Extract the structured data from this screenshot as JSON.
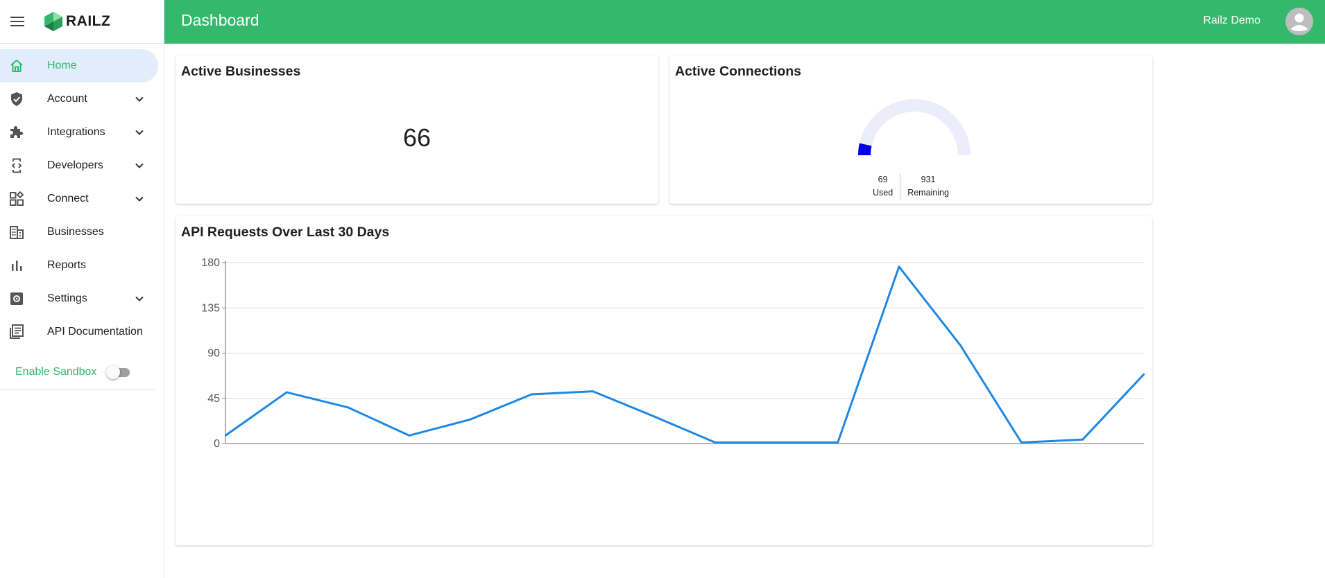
{
  "app": {
    "name": "RAILZ"
  },
  "header": {
    "title": "Dashboard",
    "user_name": "Railz Demo"
  },
  "sidebar": {
    "items": [
      {
        "label": "Home",
        "icon": "home-icon",
        "active": true,
        "expandable": false
      },
      {
        "label": "Account",
        "icon": "shield-check-icon",
        "active": false,
        "expandable": true
      },
      {
        "label": "Integrations",
        "icon": "puzzle-icon",
        "active": false,
        "expandable": true
      },
      {
        "label": "Developers",
        "icon": "developer-mode-icon",
        "active": false,
        "expandable": true
      },
      {
        "label": "Connect",
        "icon": "widgets-icon",
        "active": false,
        "expandable": true
      },
      {
        "label": "Businesses",
        "icon": "business-icon",
        "active": false,
        "expandable": false
      },
      {
        "label": "Reports",
        "icon": "bar-chart-icon",
        "active": false,
        "expandable": false
      },
      {
        "label": "Settings",
        "icon": "settings-icon",
        "active": false,
        "expandable": true
      },
      {
        "label": "API Documentation",
        "icon": "library-books-icon",
        "active": false,
        "expandable": false
      }
    ],
    "sandbox": {
      "label": "Enable Sandbox",
      "enabled": false
    }
  },
  "cards": {
    "active_businesses": {
      "title": "Active Businesses",
      "value": "66"
    },
    "active_connections": {
      "title": "Active Connections",
      "used": 69,
      "remaining": 931,
      "used_display": "69",
      "remaining_display": "931",
      "used_label": "Used",
      "remaining_label": "Remaining",
      "used_color": "#0000e8",
      "remaining_color": "#ececfa"
    },
    "api_requests": {
      "title": "API Requests Over Last 30 Days"
    }
  },
  "colors": {
    "brand": "#33b86c",
    "accent_text": "#2fb76a",
    "active_nav_bg": "#e2edfc",
    "line": "#1e88e5"
  },
  "chart_data": {
    "type": "line",
    "title": "API Requests Over Last 30 Days",
    "xlabel": "",
    "ylabel": "",
    "ylim": [
      0,
      180
    ],
    "yticks": [
      0,
      45,
      90,
      135,
      180
    ],
    "grid": true,
    "x": [
      0,
      1,
      2,
      3,
      4,
      5,
      6,
      7,
      8,
      9,
      10,
      11,
      12,
      13,
      14,
      15
    ],
    "series": [
      {
        "values": [
          8,
          51,
          36,
          8,
          24,
          49,
          52,
          27,
          1,
          1,
          1,
          176,
          98,
          1,
          4,
          69
        ]
      }
    ]
  }
}
